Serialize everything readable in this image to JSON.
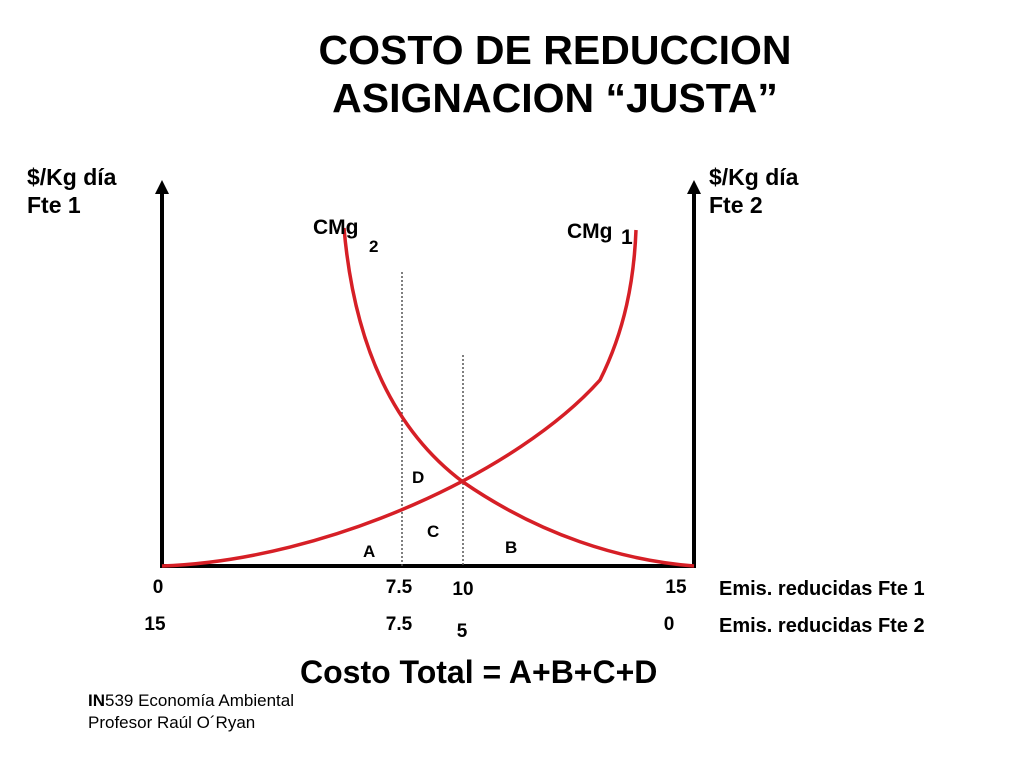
{
  "title": {
    "line1": "COSTO DE REDUCCION",
    "line2": "ASIGNACION “JUSTA”"
  },
  "left_axis": {
    "line1": "$/Kg día",
    "line2": "Fte 1"
  },
  "right_axis": {
    "line1": "$/Kg día",
    "line2": "Fte 2"
  },
  "curves": [
    {
      "label": "CMg",
      "sub": "2",
      "color": "#d61f26"
    },
    {
      "label": "CMg",
      "sub": "1",
      "color": "#d61f26"
    }
  ],
  "areas": {
    "A": "A",
    "B": "B",
    "C": "C",
    "D": "D"
  },
  "fte1_ticks": [
    "0",
    "7.5",
    "10",
    "15"
  ],
  "fte2_ticks": [
    "15",
    "7.5",
    "5",
    "0"
  ],
  "row_labels": {
    "fte1": "Emis. reducidas Fte 1",
    "fte2": "Emis. reducidas Fte 2"
  },
  "formula": "Costo Total = A+B+C+D",
  "footer": {
    "course_code": "IN",
    "course_rest": "539 Economía Ambiental",
    "professor": "Profesor Raúl O´Ryan"
  },
  "colors": {
    "curve": "#d61f26",
    "axis": "#000000",
    "guide": "#555555"
  },
  "chart_data": {
    "type": "line",
    "x_fte1": {
      "range": [
        0,
        15
      ],
      "ticks": [
        0,
        7.5,
        10,
        15
      ]
    },
    "x_fte2": {
      "range": [
        15,
        0
      ],
      "ticks": [
        15,
        7.5,
        5,
        0
      ]
    },
    "series": [
      {
        "name": "CMg1",
        "shape": "increasing, convex"
      },
      {
        "name": "CMg2",
        "shape": "decreasing, convex"
      }
    ],
    "intersection_x_fte1": 10,
    "guides_x_fte1": [
      7.5,
      10
    ]
  }
}
